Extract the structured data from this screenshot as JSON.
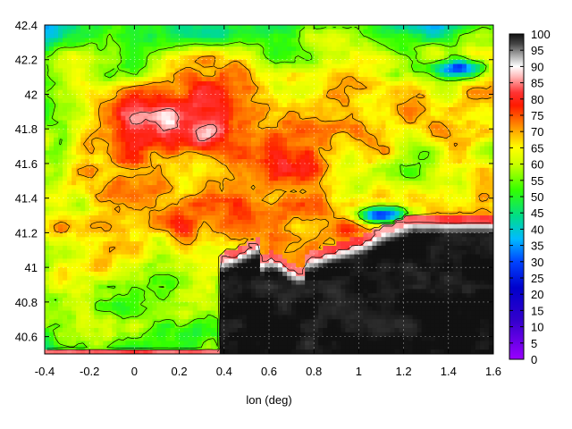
{
  "chart_data": {
    "type": "heatmap",
    "title": "",
    "xlabel": "lon (deg)",
    "ylabel": "",
    "xlim": [
      -0.4,
      1.6
    ],
    "ylim": [
      40.5,
      42.4
    ],
    "x_ticks": [
      -0.4,
      -0.2,
      0,
      0.2,
      0.4,
      0.6,
      0.8,
      1,
      1.2,
      1.4,
      1.6
    ],
    "y_ticks": [
      40.6,
      40.8,
      41,
      41.2,
      41.4,
      41.6,
      41.8,
      42,
      42.2,
      42.4
    ],
    "x_tick_labels": [
      "-0.4",
      "-0.2",
      "0",
      "0.2",
      "0.4",
      "0.6",
      "0.8",
      "1",
      "1.2",
      "1.4",
      "1.6"
    ],
    "y_tick_labels": [
      "40.6",
      "40.8",
      "41",
      "41.2",
      "41.4",
      "41.6",
      "41.8",
      "42",
      "42.2",
      "42.4"
    ],
    "colorbar": {
      "range": [
        0,
        100
      ],
      "ticks": [
        0,
        5,
        10,
        15,
        20,
        25,
        30,
        35,
        40,
        45,
        50,
        55,
        60,
        65,
        70,
        75,
        80,
        85,
        90,
        95,
        100
      ],
      "tick_labels": [
        "0",
        "5",
        "10",
        "15",
        "20",
        "25",
        "30",
        "35",
        "40",
        "45",
        "50",
        "55",
        "60",
        "65",
        "70",
        "75",
        "80",
        "85",
        "90",
        "95",
        "100"
      ],
      "stops": [
        {
          "value": 0,
          "color": "#9900ff"
        },
        {
          "value": 12,
          "color": "#3300cc"
        },
        {
          "value": 22,
          "color": "#0000cc"
        },
        {
          "value": 30,
          "color": "#0044ff"
        },
        {
          "value": 37,
          "color": "#00bbff"
        },
        {
          "value": 44,
          "color": "#00dd88"
        },
        {
          "value": 52,
          "color": "#33ff00"
        },
        {
          "value": 60,
          "color": "#ccff00"
        },
        {
          "value": 65,
          "color": "#ffff00"
        },
        {
          "value": 71,
          "color": "#ff9900"
        },
        {
          "value": 78,
          "color": "#ff1a00"
        },
        {
          "value": 82,
          "color": "#ff3333"
        },
        {
          "value": 87,
          "color": "#ffbbbb"
        },
        {
          "value": 90,
          "color": "#ffffff"
        },
        {
          "value": 94,
          "color": "#999999"
        },
        {
          "value": 97,
          "color": "#444444"
        },
        {
          "value": 100,
          "color": "#111111"
        }
      ]
    },
    "grid": true,
    "colorbar_placement": "right"
  }
}
